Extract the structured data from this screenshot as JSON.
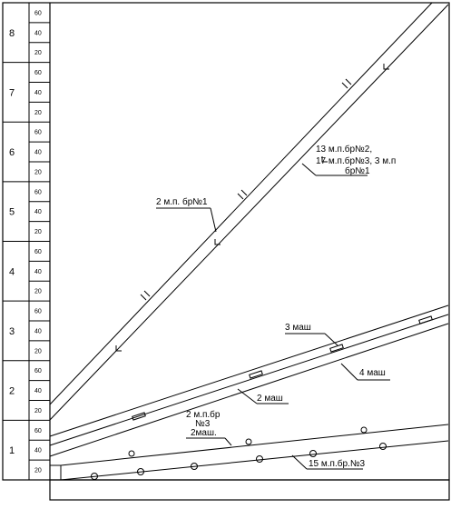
{
  "rows": [
    {
      "number": "8",
      "scale": [
        "60",
        "40",
        "20"
      ]
    },
    {
      "number": "7",
      "scale": [
        "60",
        "40",
        "20"
      ]
    },
    {
      "number": "6",
      "scale": [
        "60",
        "40",
        "20"
      ]
    },
    {
      "number": "5",
      "scale": [
        "60",
        "40",
        "20"
      ]
    },
    {
      "number": "4",
      "scale": [
        "60",
        "40",
        "20"
      ]
    },
    {
      "number": "3",
      "scale": [
        "60",
        "40",
        "20"
      ]
    },
    {
      "number": "2",
      "scale": [
        "60",
        "40",
        "20"
      ]
    },
    {
      "number": "1",
      "scale": [
        "60",
        "40",
        "20"
      ]
    }
  ],
  "labels": {
    "top_right": [
      "13 м.п.бр№2,",
      "17 м.п.бр№3, 3 м.п",
      "бр№1"
    ],
    "top_left": "2 м.п. бр№1",
    "cars3": "3 маш",
    "cars4": "4 маш",
    "cars2": "2 маш",
    "middle": [
      "2 м.п.бр",
      "№3",
      "2маш."
    ],
    "bottom": "15 м.п.бр.№3"
  }
}
